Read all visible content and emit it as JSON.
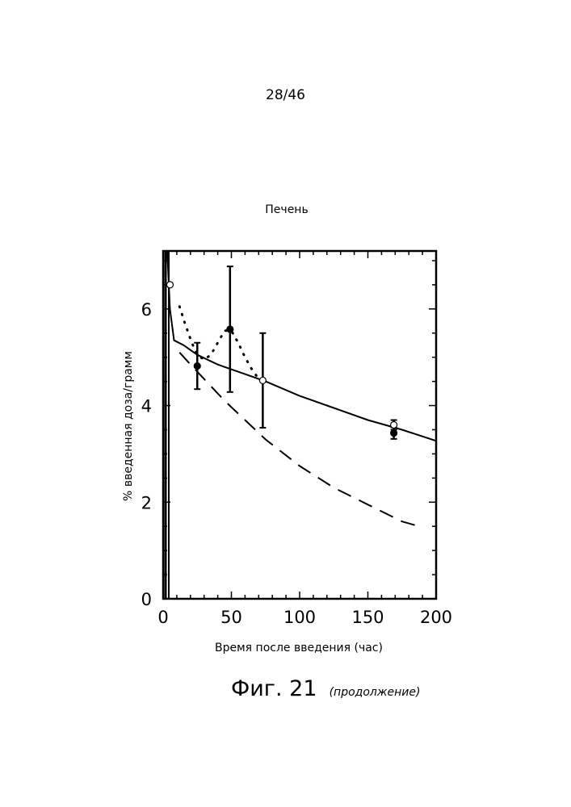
{
  "page_number": "28/46",
  "figure": {
    "caption": "Фиг. 21",
    "caption_note": "(продолжение)"
  },
  "chart_data": {
    "type": "line",
    "title": "Печень",
    "xlabel": "Время после введения (час)",
    "ylabel": "% введенная доза/грамм",
    "xlim": [
      0,
      200
    ],
    "ylim": [
      0,
      7.2
    ],
    "xticks": [
      0,
      50,
      100,
      150,
      200
    ],
    "yticks": [
      0,
      2,
      4,
      6
    ],
    "grid": false,
    "series": [
      {
        "style": "solid",
        "x": [
          3,
          5,
          8,
          15,
          25,
          40,
          50,
          60,
          75,
          100,
          125,
          150,
          175,
          200
        ],
        "y": [
          7.2,
          6.0,
          5.35,
          5.25,
          5.05,
          4.85,
          4.75,
          4.65,
          4.5,
          4.2,
          3.95,
          3.7,
          3.5,
          3.27
        ]
      },
      {
        "style": "dotted",
        "x": [
          12,
          16,
          21,
          25,
          30,
          35,
          40,
          45,
          50,
          55,
          60,
          65,
          70,
          73
        ],
        "y": [
          6.05,
          5.7,
          5.3,
          5.05,
          4.95,
          5.05,
          5.3,
          5.55,
          5.55,
          5.3,
          5.0,
          4.75,
          4.55,
          4.5
        ]
      },
      {
        "style": "dashed",
        "x": [
          12,
          20,
          30,
          45,
          60,
          75,
          100,
          125,
          150,
          175,
          190
        ],
        "y": [
          5.1,
          4.85,
          4.55,
          4.1,
          3.7,
          3.3,
          2.75,
          2.3,
          1.95,
          1.6,
          1.48
        ]
      }
    ],
    "points": [
      {
        "x": 5,
        "y": 6.5,
        "marker": "open",
        "err": 0
      },
      {
        "x": 25,
        "y": 4.82,
        "marker": "filled",
        "err": 0.48
      },
      {
        "x": 49,
        "y": 5.58,
        "marker": "filled",
        "err": 1.3
      },
      {
        "x": 73,
        "y": 4.52,
        "marker": "open",
        "err": 0.98
      },
      {
        "x": 169,
        "y": 3.43,
        "marker": "filled",
        "err": 0.12
      },
      {
        "x": 169,
        "y": 3.6,
        "marker": "open",
        "err": 0.1
      }
    ]
  }
}
